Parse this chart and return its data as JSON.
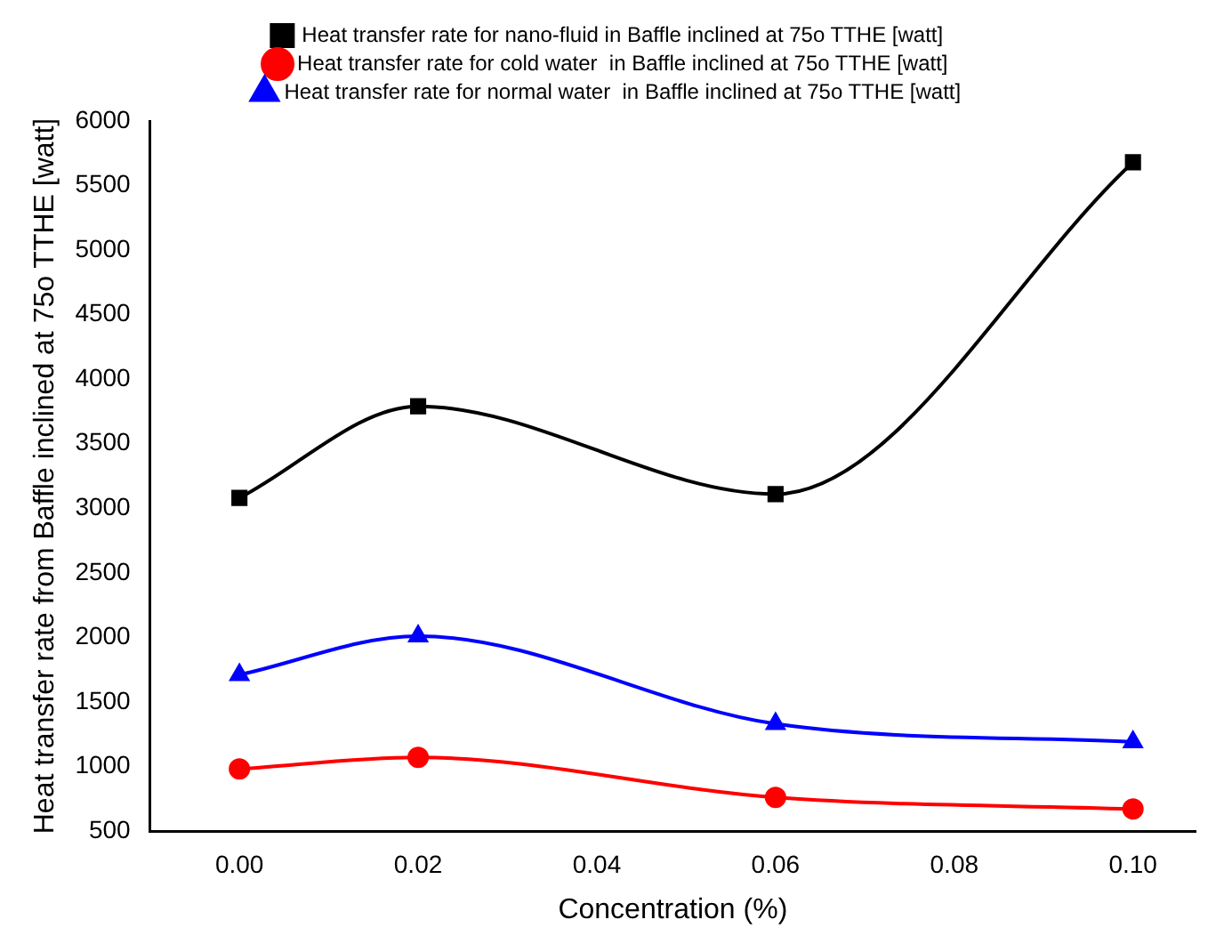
{
  "chart_data": {
    "type": "line",
    "xlabel": "Concentration (%)",
    "ylabel": "Heat transfer rate from Baffle inclined at 75o TTHE [watt]",
    "x": [
      0,
      0.02,
      0.06,
      0.1
    ],
    "series": [
      {
        "name": "Heat transfer rate for nano-fluid in Baffle inclined at 75o TTHE [watt]",
        "color": "#000000",
        "marker": "square",
        "values": [
          3080,
          3790,
          3110,
          5680
        ]
      },
      {
        "name": "Heat transfer rate for cold water  in Baffle inclined at 75o TTHE [watt]",
        "color": "#ff0000",
        "marker": "circle",
        "values": [
          980,
          1070,
          760,
          670
        ]
      },
      {
        "name": "Heat transfer rate for normal water  in Baffle inclined at 75o TTHE [watt]",
        "color": "#0000ff",
        "marker": "triangle",
        "values": [
          1710,
          2010,
          1330,
          1190
        ]
      }
    ],
    "xlim": [
      -0.01,
      0.107
    ],
    "xticks": [
      {
        "value": 0,
        "label": "0.00"
      },
      {
        "value": 0.02,
        "label": "0.02"
      },
      {
        "value": 0.04,
        "label": "0.04"
      },
      {
        "value": 0.06,
        "label": "0.06"
      },
      {
        "value": 0.08,
        "label": "0.08"
      },
      {
        "value": 0.1,
        "label": "0.10"
      }
    ],
    "ylim": [
      500,
      6000
    ],
    "yticks": [
      500,
      1000,
      1500,
      2000,
      2500,
      3000,
      3500,
      4000,
      4500,
      5000,
      5500,
      6000
    ],
    "grid": false,
    "legend": "top",
    "line_style": "solid"
  }
}
